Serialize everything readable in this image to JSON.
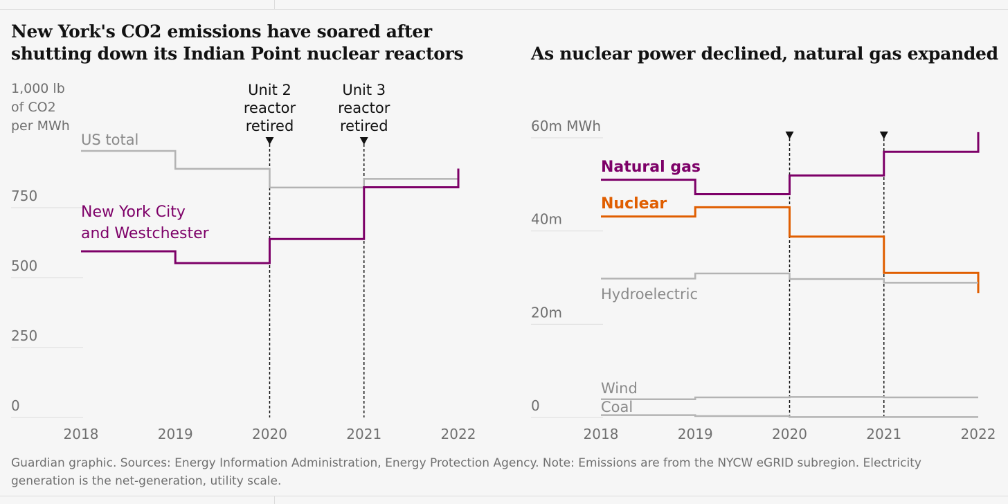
{
  "chart_data": [
    {
      "type": "line",
      "title": "New York's CO2 emissions have soared after shutting down its Indian Point nuclear reactors",
      "ylabel": "1,000 lb of CO2 per MWh",
      "ylabel_lines": [
        "1,000 lb",
        "of CO2",
        "per MWh"
      ],
      "ylim": [
        0,
        1000
      ],
      "yticks": [
        {
          "value": 0,
          "label": "0"
        },
        {
          "value": 250,
          "label": "250"
        },
        {
          "value": 500,
          "label": "500"
        },
        {
          "value": 750,
          "label": "750"
        }
      ],
      "xlim": [
        2018,
        2022
      ],
      "xticks": [
        "2018",
        "2019",
        "2020",
        "2021",
        "2022"
      ],
      "step": "post",
      "series": [
        {
          "name": "US total",
          "label_lines": [
            "US total"
          ],
          "color": "#b3b3b3",
          "width": 2.5,
          "x": [
            2018,
            2019,
            2020,
            2021,
            2022
          ],
          "y": [
            953,
            889,
            822,
            853,
            880
          ]
        },
        {
          "name": "New York City and Westchester",
          "label_lines": [
            "New York City",
            "and Westchester"
          ],
          "color": "#7d0068",
          "width": 3,
          "x": [
            2018,
            2019,
            2020,
            2021,
            2022
          ],
          "y": [
            594,
            552,
            638,
            823,
            890
          ]
        }
      ],
      "annotations": [
        {
          "x": 2020,
          "lines": [
            "Unit 2",
            "reactor",
            "retired"
          ]
        },
        {
          "x": 2021,
          "lines": [
            "Unit 3",
            "reactor",
            "retired"
          ]
        }
      ]
    },
    {
      "type": "line",
      "title": "As nuclear power declined, natural gas expanded",
      "ylim": [
        0,
        60
      ],
      "yticks": [
        {
          "value": 0,
          "label": "0"
        },
        {
          "value": 20,
          "label": "20m"
        },
        {
          "value": 40,
          "label": "40m"
        },
        {
          "value": 60,
          "label": "60m MWh"
        }
      ],
      "xlim": [
        2018,
        2022
      ],
      "xticks": [
        "2018",
        "2019",
        "2020",
        "2021",
        "2022"
      ],
      "step": "post",
      "series": [
        {
          "name": "Natural gas",
          "color": "#7d0068",
          "width": 3,
          "bold": true,
          "x": [
            2018,
            2019,
            2020,
            2021,
            2022
          ],
          "y": [
            51.0,
            47.9,
            51.9,
            57.0,
            61.2
          ]
        },
        {
          "name": "Nuclear",
          "color": "#e05e00",
          "width": 3,
          "bold": true,
          "x": [
            2018,
            2019,
            2020,
            2021,
            2022
          ],
          "y": [
            43.1,
            45.1,
            38.8,
            31.0,
            26.7
          ]
        },
        {
          "name": "Hydroelectric",
          "color": "#b3b3b3",
          "width": 2.5,
          "x": [
            2018,
            2019,
            2020,
            2021,
            2022
          ],
          "y": [
            29.8,
            30.9,
            29.7,
            28.9,
            28.9
          ]
        },
        {
          "name": "Wind",
          "color": "#b3b3b3",
          "width": 2.5,
          "x": [
            2018,
            2019,
            2020,
            2021,
            2022
          ],
          "y": [
            3.9,
            4.3,
            4.4,
            4.3,
            4.3
          ]
        },
        {
          "name": "Coal",
          "color": "#b3b3b3",
          "width": 2.5,
          "x": [
            2018,
            2019,
            2020,
            2021,
            2022
          ],
          "y": [
            0.5,
            0.3,
            0.1,
            0.1,
            0.1
          ]
        }
      ],
      "annotations": [
        {
          "x": 2020,
          "lines": []
        },
        {
          "x": 2021,
          "lines": []
        }
      ]
    }
  ],
  "footer": "Guardian graphic. Sources: Energy Information Administration, Energy Protection Agency. Note: Emissions are from the NYCW eGRID subregion. Electricity generation is the net-generation, utility scale."
}
